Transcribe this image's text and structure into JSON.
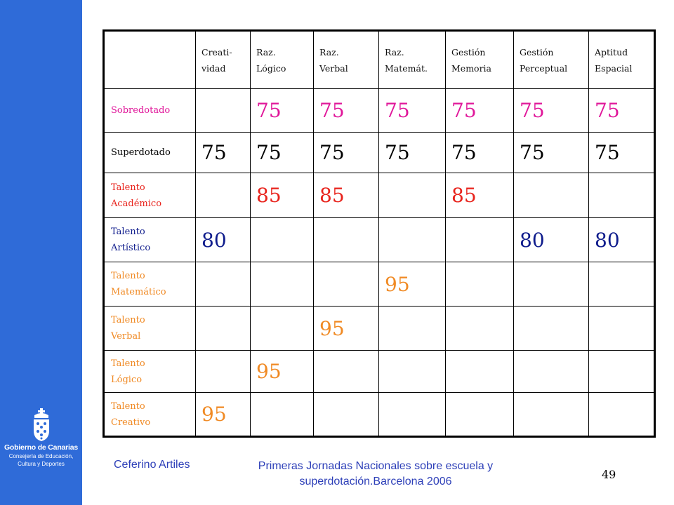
{
  "logo": {
    "line1": "Gobierno de Canarias",
    "line2": "Consejería de Educación,",
    "line3": "Cultura y Deportes"
  },
  "table": {
    "headers": [
      [
        "Creati-",
        "vidad"
      ],
      [
        "Raz.",
        "Lógico"
      ],
      [
        "Raz.",
        "Verbal"
      ],
      [
        "Raz.",
        "Matemát."
      ],
      [
        "Gestión",
        "Memoria"
      ],
      [
        "Gestión",
        "Perceptual"
      ],
      [
        "Aptitud",
        "Espacial"
      ]
    ],
    "rows": [
      {
        "label": [
          "Sobredotado"
        ],
        "color": "#e0179a",
        "values": [
          "",
          "75",
          "75",
          "75",
          "75",
          "75",
          "75"
        ]
      },
      {
        "label": [
          "Superdotado"
        ],
        "color": "#000000",
        "values": [
          "75",
          "75",
          "75",
          "75",
          "75",
          "75",
          "75"
        ]
      },
      {
        "label": [
          "Talento",
          "Académico"
        ],
        "color": "#e8231c",
        "values": [
          "",
          "85",
          "85",
          "",
          "85",
          "",
          ""
        ]
      },
      {
        "label": [
          "Talento",
          "Artístico"
        ],
        "color": "#0f1c8c",
        "values": [
          "80",
          "",
          "",
          "",
          "",
          "80",
          "80"
        ]
      },
      {
        "label": [
          "Talento",
          "Matemático"
        ],
        "color": "#f08a24",
        "values": [
          "",
          "",
          "",
          "95",
          "",
          "",
          ""
        ]
      },
      {
        "label": [
          "Talento",
          "Verbal"
        ],
        "color": "#f08a24",
        "values": [
          "",
          "",
          "95",
          "",
          "",
          "",
          ""
        ]
      },
      {
        "label": [
          "Talento",
          "Lógico"
        ],
        "color": "#f08a24",
        "values": [
          "",
          "95",
          "",
          "",
          "",
          "",
          ""
        ]
      },
      {
        "label": [
          "Talento",
          "Creativo"
        ],
        "color": "#f08a24",
        "values": [
          "95",
          "",
          "",
          "",
          "",
          "",
          ""
        ]
      }
    ]
  },
  "footer": {
    "author": "Ceferino Artiles",
    "event_line1": "Primeras Jornadas Nacionales  sobre escuela y",
    "event_line2": "superdotación.Barcelona 2006",
    "page_number": "49"
  }
}
